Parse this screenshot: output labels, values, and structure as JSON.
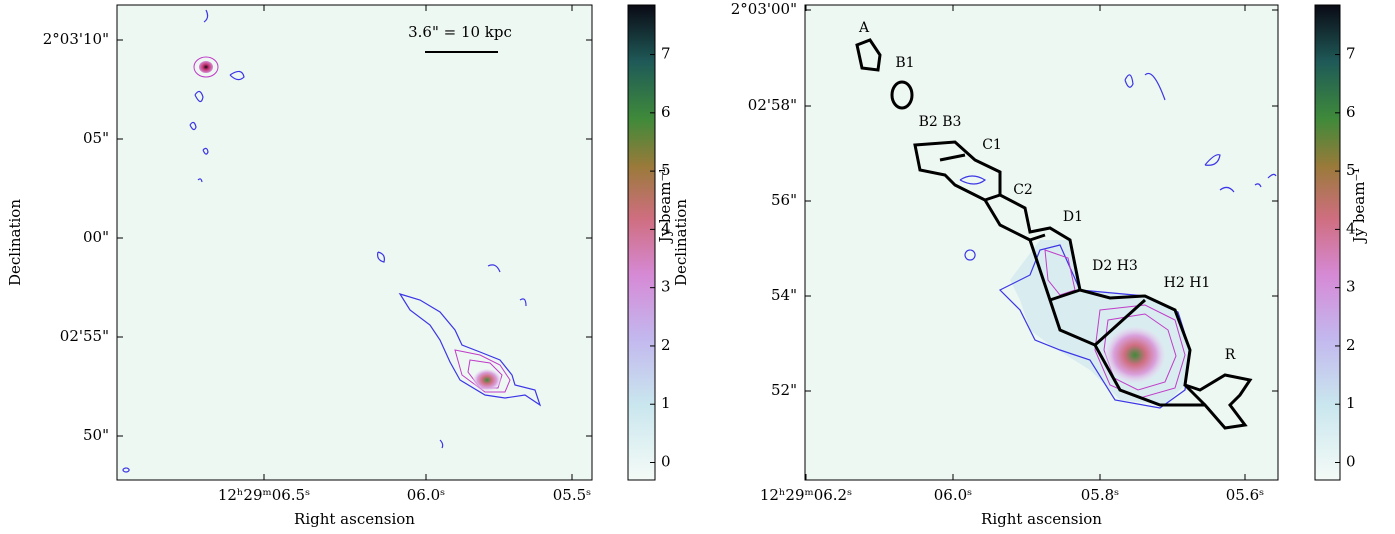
{
  "panels": [
    {
      "xlabel": "Right ascension",
      "ylabel": "Declination",
      "xticks": [
        "12ʰ29ᵐ06.5ˢ",
        "06.0ˢ",
        "05.5ˢ"
      ],
      "yticks": [
        "2°03'10\"",
        "05\"",
        "00\"",
        "02'55\"",
        "50\""
      ],
      "annotation": "3.6\" = 10 kpc",
      "colorbar": {
        "label": "Jy beam⁻¹",
        "lim": [
          -0.3,
          7.85
        ],
        "ticks": [
          0,
          1,
          2,
          3,
          4,
          5,
          6,
          7
        ]
      }
    },
    {
      "xlabel": "Right ascension",
      "ylabel": "Declination",
      "xticks": [
        "12ʰ29ᵐ06.2ˢ",
        "06.0ˢ",
        "05.8ˢ",
        "05.6ˢ"
      ],
      "yticks": [
        "2°03'00\"",
        "02'58\"",
        "56\"",
        "54\"",
        "52\""
      ],
      "regions": [
        "A",
        "B1",
        "B2 B3",
        "C1",
        "C2",
        "D1",
        "D2 H3",
        "H2 H1",
        "R"
      ],
      "colorbar": {
        "label": "Jy beam⁻¹",
        "lim": [
          -0.3,
          7.85
        ],
        "ticks": [
          0,
          1,
          2,
          3,
          4,
          5,
          6,
          7
        ]
      }
    }
  ]
}
